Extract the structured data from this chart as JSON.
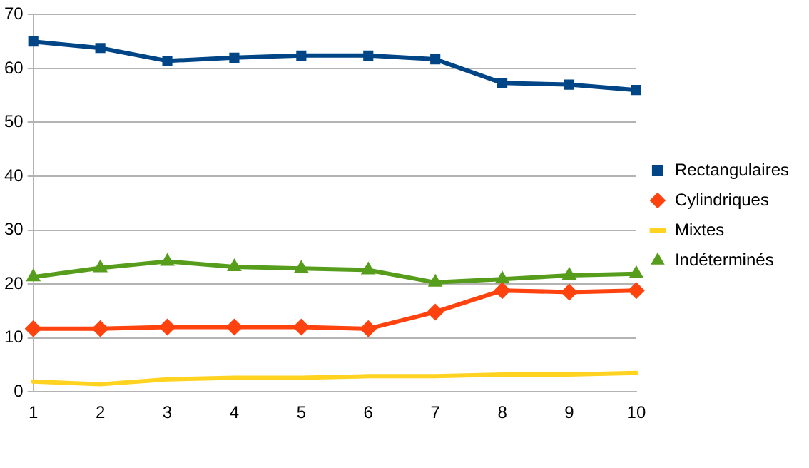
{
  "chart_data": {
    "type": "line",
    "categories": [
      "1",
      "2",
      "3",
      "4",
      "5",
      "6",
      "7",
      "8",
      "9",
      "10"
    ],
    "series": [
      {
        "name": "Rectangulaires",
        "color": "#004586",
        "marker": "square",
        "values": [
          65,
          63.8,
          61.4,
          62,
          62.4,
          62.4,
          61.7,
          57.3,
          57,
          56
        ]
      },
      {
        "name": "Cylindriques",
        "color": "#ff420e",
        "marker": "diamond",
        "values": [
          11.7,
          11.7,
          12,
          12,
          12,
          11.7,
          14.8,
          18.8,
          18.5,
          18.8
        ]
      },
      {
        "name": "Mixtes",
        "color": "#ffd320",
        "marker": "none",
        "values": [
          1.9,
          1.4,
          2.3,
          2.6,
          2.6,
          2.9,
          2.9,
          3.2,
          3.2,
          3.5
        ]
      },
      {
        "name": "Indéterminés",
        "color": "#579d1c",
        "marker": "triangle",
        "values": [
          21.3,
          23,
          24.2,
          23.2,
          22.9,
          22.6,
          20.3,
          20.9,
          21.6,
          21.9
        ]
      }
    ],
    "ylim": [
      0,
      70
    ],
    "yticks": [
      0,
      10,
      20,
      30,
      40,
      50,
      60,
      70
    ],
    "grid": "y",
    "legend": "right",
    "line_style": "solid"
  }
}
